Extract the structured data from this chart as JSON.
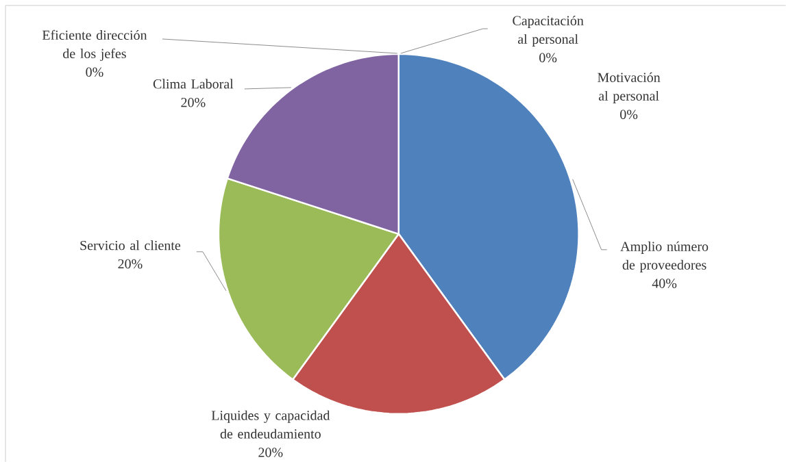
{
  "chart_data": {
    "type": "pie",
    "categories": [
      "Amplio número de proveedores",
      "Liquides y capacidad de endeudamiento",
      "Servicio al cliente",
      "Clima Laboral",
      "Eficiente dirección de los jefes",
      "Capacitación al personal",
      "Motivación al personal"
    ],
    "values": [
      40,
      20,
      20,
      20,
      0,
      0,
      0
    ],
    "colors": [
      "#4f81bd",
      "#c0504d",
      "#9bbb59",
      "#8064a2",
      "#4bacc6",
      "#f79646",
      "#2c4d75"
    ],
    "value_labels": [
      "40%",
      "20%",
      "20%",
      "20%",
      "0%",
      "0%",
      "0%"
    ]
  }
}
